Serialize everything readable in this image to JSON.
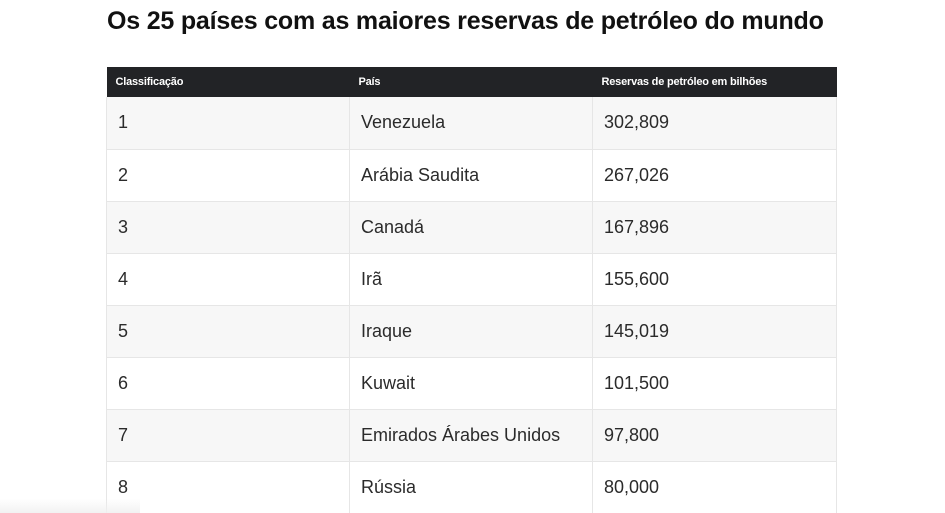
{
  "title": "Os 25 países com as maiores reservas de petróleo do mundo",
  "table": {
    "headers": [
      "Classificação",
      "País",
      "Reservas de petróleo em bilhões"
    ],
    "rows": [
      [
        "1",
        "Venezuela",
        "302,809"
      ],
      [
        "2",
        "Arábia Saudita",
        "267,026"
      ],
      [
        "3",
        "Canadá",
        "167,896"
      ],
      [
        "4",
        "Irã",
        "155,600"
      ],
      [
        "5",
        "Iraque",
        "145,019"
      ],
      [
        "6",
        "Kuwait",
        "101,500"
      ],
      [
        "7",
        "Emirados Árabes Unidos",
        "97,800"
      ],
      [
        "8",
        "Rússia",
        "80,000"
      ]
    ]
  },
  "colors": {
    "header_bg": "#222326",
    "header_text": "#ffffff",
    "row_alt_bg": "#f7f7f7",
    "border": "#e6e6e6"
  }
}
